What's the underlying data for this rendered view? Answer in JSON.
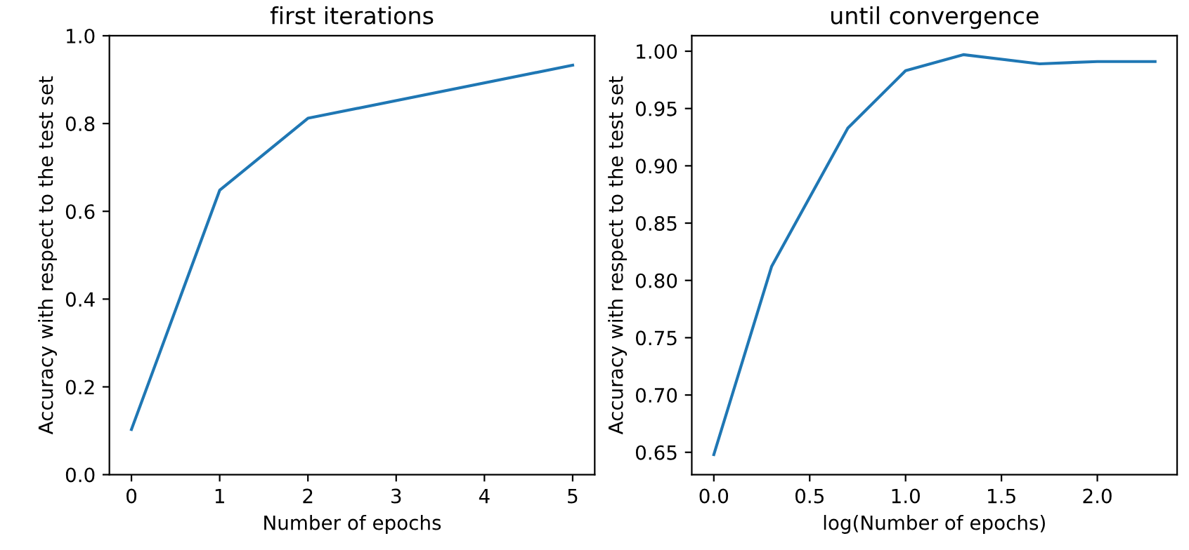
{
  "chart_data": [
    {
      "type": "line",
      "title": "first iterations",
      "xlabel": "Number of epochs",
      "ylabel": "Accuracy with respect to the test set",
      "x": [
        0,
        1,
        2,
        5
      ],
      "series": [
        {
          "color": "#1f77b4",
          "values": [
            0.103,
            0.648,
            0.812,
            0.933
          ]
        }
      ],
      "xlim": [
        -0.25,
        5.25
      ],
      "xticks": [
        0,
        1,
        2,
        3,
        4,
        5
      ],
      "ylim": [
        0.0,
        1.0
      ],
      "yticks": [
        {
          "value": 0,
          "label": "0.0"
        },
        0.2,
        0.4,
        0.6,
        0.8,
        {
          "value": 1,
          "label": "1.0"
        }
      ],
      "grid": false,
      "legend": false
    },
    {
      "type": "line",
      "title": "until convergence",
      "xlabel": "log(Number of epochs)",
      "ylabel": "Accuracy with respect to the test set",
      "x": [
        0,
        0.301,
        0.699,
        1.0,
        1.301,
        1.699,
        2.0,
        2.301
      ],
      "series": [
        {
          "color": "#1f77b4",
          "values": [
            0.648,
            0.812,
            0.933,
            0.983,
            0.997,
            0.989,
            0.991,
            0.991
          ]
        }
      ],
      "xlim": [
        -0.115,
        2.416
      ],
      "xticks": [
        {
          "value": 0,
          "label": "0.0"
        },
        0.5,
        {
          "value": 1,
          "label": "1.0"
        },
        1.5,
        {
          "value": 2,
          "label": "2.0"
        }
      ],
      "ylim": [
        0.6305,
        1.0135
      ],
      "yticks": [
        0.65,
        {
          "value": 0.7,
          "label": "0.70"
        },
        0.75,
        {
          "value": 0.8,
          "label": "0.80"
        },
        0.85,
        {
          "value": 0.9,
          "label": "0.90"
        },
        0.95,
        {
          "value": 1,
          "label": "1.00"
        }
      ],
      "grid": false,
      "legend": false
    }
  ]
}
